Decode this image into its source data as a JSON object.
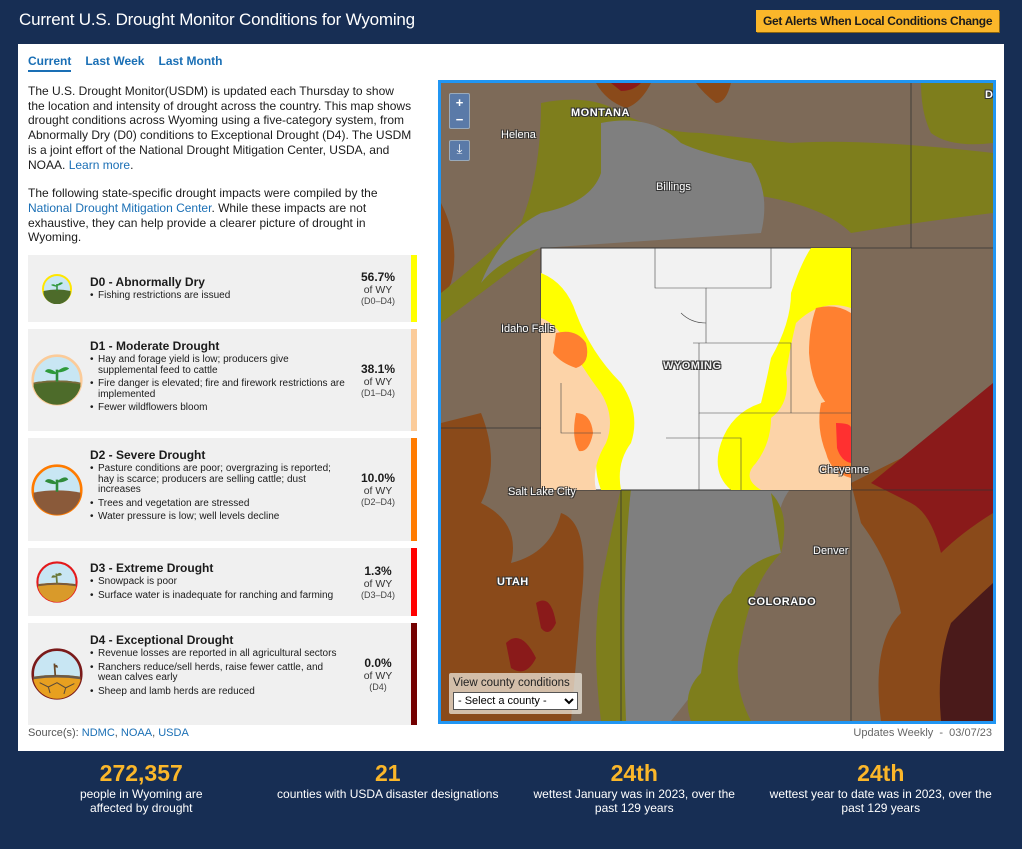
{
  "header": {
    "title": "Current U.S. Drought Monitor Conditions for Wyoming",
    "alert_button": "Get Alerts When Local Conditions Change"
  },
  "tabs": [
    {
      "label": "Current",
      "active": true
    },
    {
      "label": "Last Week",
      "active": false
    },
    {
      "label": "Last Month",
      "active": false
    }
  ],
  "intro": {
    "p1": "The U.S. Drought Monitor(USDM) is updated each Thursday to show the location and intensity of drought across the country. This map shows drought conditions across Wyoming using a five-category system, from Abnormally Dry (D0) conditions to Exceptional Drought (D4). The USDM is a joint effort of the National Drought Mitigation Center, USDA, and NOAA. ",
    "p1_link": "Learn more",
    "p1_end": ".",
    "p2_start": "The following state-specific drought impacts were compiled by the ",
    "p2_link": "National Drought Mitigation Center",
    "p2_end": ". While these impacts are not exhaustive, they can help provide a clearer picture of drought in Wyoming."
  },
  "categories": [
    {
      "title": "D0 - Abnormally Dry",
      "color": "#ffff00",
      "impacts": [
        "Fishing restrictions are issued"
      ],
      "percent": "56.7%",
      "of": "of WY",
      "range": "(D0–D4)"
    },
    {
      "title": "D1 - Moderate Drought",
      "color": "#fcd37f",
      "impacts": [
        "Hay and forage yield is low; producers give supplemental feed to cattle",
        "Fire danger is elevated; fire and firework restrictions are implemented",
        "Fewer wildflowers bloom"
      ],
      "percent": "38.1%",
      "of": "of WY",
      "range": "(D1–D4)"
    },
    {
      "title": "D2 - Severe Drought",
      "color": "#ff7b00",
      "impacts": [
        "Pasture conditions are poor; overgrazing is reported; hay is scarce; producers are selling cattle; dust increases",
        "Trees and vegetation are stressed",
        "Water pressure is low; well levels decline"
      ],
      "percent": "10.0%",
      "of": "of WY",
      "range": "(D2–D4)"
    },
    {
      "title": "D3 - Extreme Drought",
      "color": "#ff0000",
      "impacts": [
        "Snowpack is poor",
        "Surface water is inadequate for ranching and farming"
      ],
      "percent": "1.3%",
      "of": "of WY",
      "range": "(D3–D4)"
    },
    {
      "title": "D4 - Exceptional Drought",
      "color": "#730000",
      "impacts": [
        "Revenue losses are reported in all agricultural sectors",
        "Ranchers reduce/sell herds, raise fewer cattle, and wean calves early",
        "Sheep and lamb herds are reduced"
      ],
      "percent": "0.0%",
      "of": "of WY",
      "range": "(D4)"
    }
  ],
  "source": {
    "label": "Source(s): ",
    "links": [
      "NDMC",
      "NOAA",
      "USDA"
    ]
  },
  "updates": "Updates Weekly  -  03/07/23",
  "map": {
    "labels": {
      "montana": "MONTANA",
      "helena": "Helena",
      "billings": "Billings",
      "idaho_falls": "Idaho Falls",
      "wyoming": "WYOMING",
      "cheyenne": "Cheyenne",
      "salt_lake_city": "Salt Lake City",
      "denver": "Denver",
      "utah": "UTAH",
      "colorado": "COLORADO",
      "edge_d": "D"
    },
    "zoom_in": "+",
    "zoom_out": "−",
    "county_label": "View county conditions",
    "county_select": "- Select a county -"
  },
  "stats": [
    {
      "value": "272,357",
      "desc": "people in Wyoming are affected by drought"
    },
    {
      "value": "21",
      "desc": "counties with USDA disaster designations"
    },
    {
      "value": "24th",
      "desc": "wettest January was in 2023, over the past 129 years"
    },
    {
      "value": "24th",
      "desc": "wettest year to date was in 2023, over the past 129 years"
    }
  ]
}
